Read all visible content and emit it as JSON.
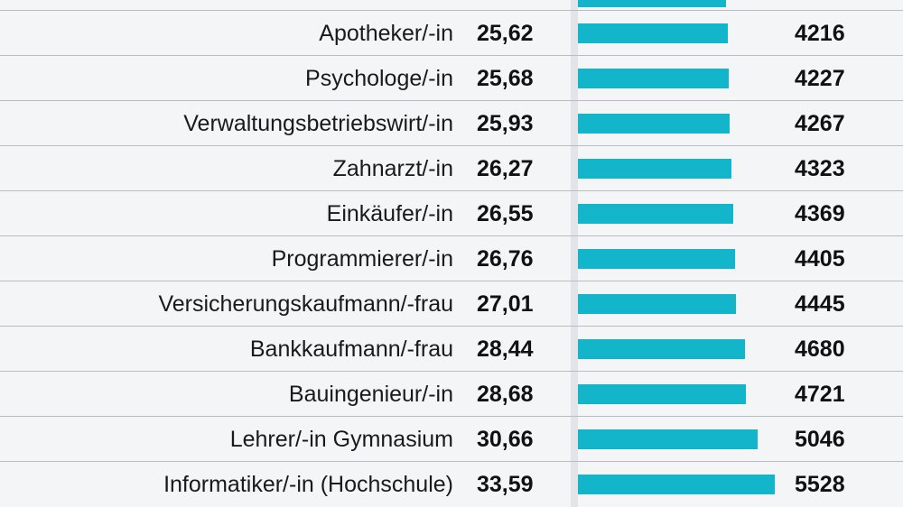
{
  "chart_data": {
    "type": "bar",
    "orientation": "horizontal",
    "title": "",
    "categories": [
      "Apotheker/-in",
      "Psychologe/-in",
      "Verwaltungsbetriebswirt/-in",
      "Zahnarzt/-in",
      "Einkäufer/-in",
      "Programmierer/-in",
      "Versicherungskaufmann/-frau",
      "Bankkaufmann/-frau",
      "Bauingenieur/-in",
      "Lehrer/-in Gymnasium",
      "Informatiker/-in (Hochschule)"
    ],
    "rate_labels": [
      "25,62",
      "25,68",
      "25,93",
      "26,27",
      "26,55",
      "26,76",
      "27,01",
      "28,44",
      "28,68",
      "30,66",
      "33,59"
    ],
    "rates": [
      25.62,
      25.68,
      25.93,
      26.27,
      26.55,
      26.76,
      27.01,
      28.44,
      28.68,
      30.66,
      33.59
    ],
    "income_labels": [
      "4216",
      "4227",
      "4267",
      "4323",
      "4369",
      "4405",
      "4445",
      "4680",
      "4721",
      "5046",
      "5528"
    ],
    "values": [
      4216,
      4227,
      4267,
      4323,
      4369,
      4405,
      4445,
      4680,
      4721,
      5046,
      5528
    ],
    "xlim": [
      0,
      5528
    ],
    "bar_color": "#13b5cb",
    "partial_top_row": {
      "value": 4150
    }
  }
}
